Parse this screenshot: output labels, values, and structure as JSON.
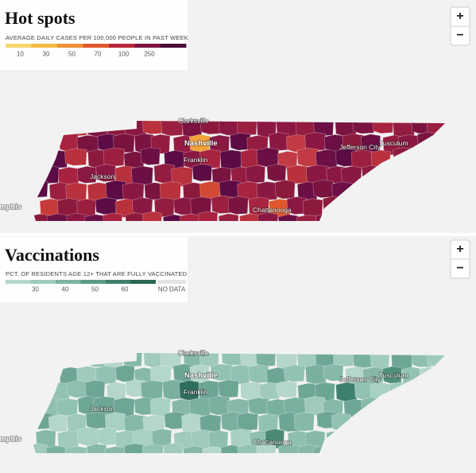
{
  "hot_spots": {
    "title": "Hot spots",
    "legend_title": "AVERAGE DAILY CASES PER 100,000 PEOPLE IN PAST WEEK",
    "legend": [
      10,
      30,
      50,
      70,
      100,
      250
    ],
    "cities": [
      "Clarksville",
      "Nashville",
      "Franklin",
      "Jackson",
      "Memphis",
      "Jefferson City",
      "Tusculum",
      "Chattanooga"
    ],
    "zoom": [
      "+",
      "−"
    ]
  },
  "vaccinations": {
    "title": "Vaccinations",
    "legend_title": "PCT. OF RESIDENTS AGE 12+ THAT ARE FULLY VACCINATED",
    "legend": [
      30,
      40,
      50,
      60
    ],
    "no_data": "NO DATA",
    "cities": [
      "Clarksville",
      "Nashville",
      "Franklin",
      "Jackson",
      "Memphis",
      "Jefferson City",
      "Tusculum",
      "Chattanooga"
    ],
    "zoom": [
      "+",
      "−"
    ]
  }
}
